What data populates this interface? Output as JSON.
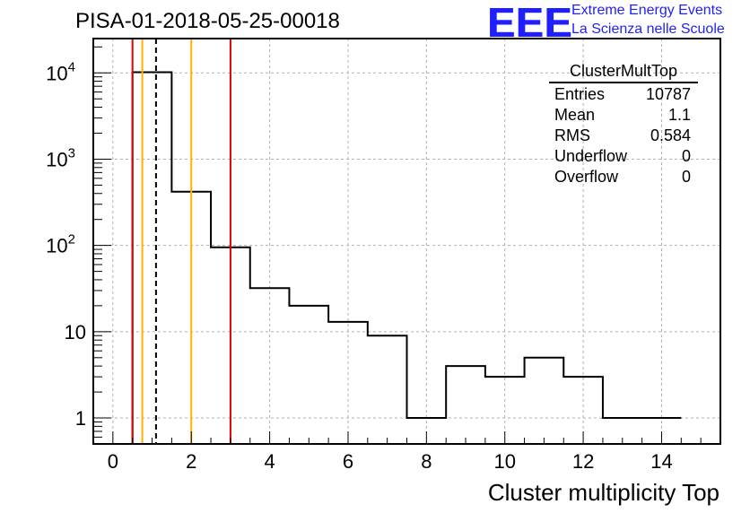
{
  "title": "PISA-01-2018-05-25-00018",
  "logo": {
    "text": "EEE",
    "line1": "Extreme Energy Events",
    "line2": "La Scienza nelle Scuole",
    "color": "#1f1fff"
  },
  "stats": {
    "name": "ClusterMultTop",
    "rows": [
      {
        "label": "Entries",
        "value": "10787"
      },
      {
        "label": "Mean",
        "value": "1.1"
      },
      {
        "label": "RMS",
        "value": "0.584"
      },
      {
        "label": "Underflow",
        "value": "0"
      },
      {
        "label": "Overflow",
        "value": "0"
      }
    ]
  },
  "chart_data": {
    "type": "histogram",
    "xlabel": "Cluster multiplicity Top",
    "ylabel": "",
    "xlim": [
      -0.5,
      15.5
    ],
    "ylim": [
      0.5,
      25000
    ],
    "yscale": "log",
    "grid": true,
    "xticks": [
      0,
      2,
      4,
      6,
      8,
      10,
      12,
      14
    ],
    "yticks": [
      {
        "value": 1,
        "base": "1",
        "exp": ""
      },
      {
        "value": 10,
        "base": "10",
        "exp": ""
      },
      {
        "value": 100,
        "base": "10",
        "exp": "2"
      },
      {
        "value": 1000,
        "base": "10",
        "exp": "3"
      },
      {
        "value": 10000,
        "base": "10",
        "exp": "4"
      }
    ],
    "bin_edges": [
      0.5,
      1.5,
      2.5,
      3.5,
      4.5,
      5.5,
      6.5,
      7.5,
      8.5,
      9.5,
      10.5,
      11.5,
      12.5,
      13.5,
      14.5
    ],
    "counts": [
      10200,
      420,
      95,
      32,
      20,
      13,
      9,
      1,
      4,
      3,
      5,
      3,
      1,
      1
    ],
    "markers": [
      {
        "x": 0.5,
        "color": "#e00000",
        "style": "solid"
      },
      {
        "x": 0.75,
        "color": "#ffb000",
        "style": "solid"
      },
      {
        "x": 1.1,
        "color": "#000000",
        "style": "dashed"
      },
      {
        "x": 2.0,
        "color": "#ffb000",
        "style": "solid"
      },
      {
        "x": 3.0,
        "color": "#e00000",
        "style": "solid"
      }
    ]
  }
}
